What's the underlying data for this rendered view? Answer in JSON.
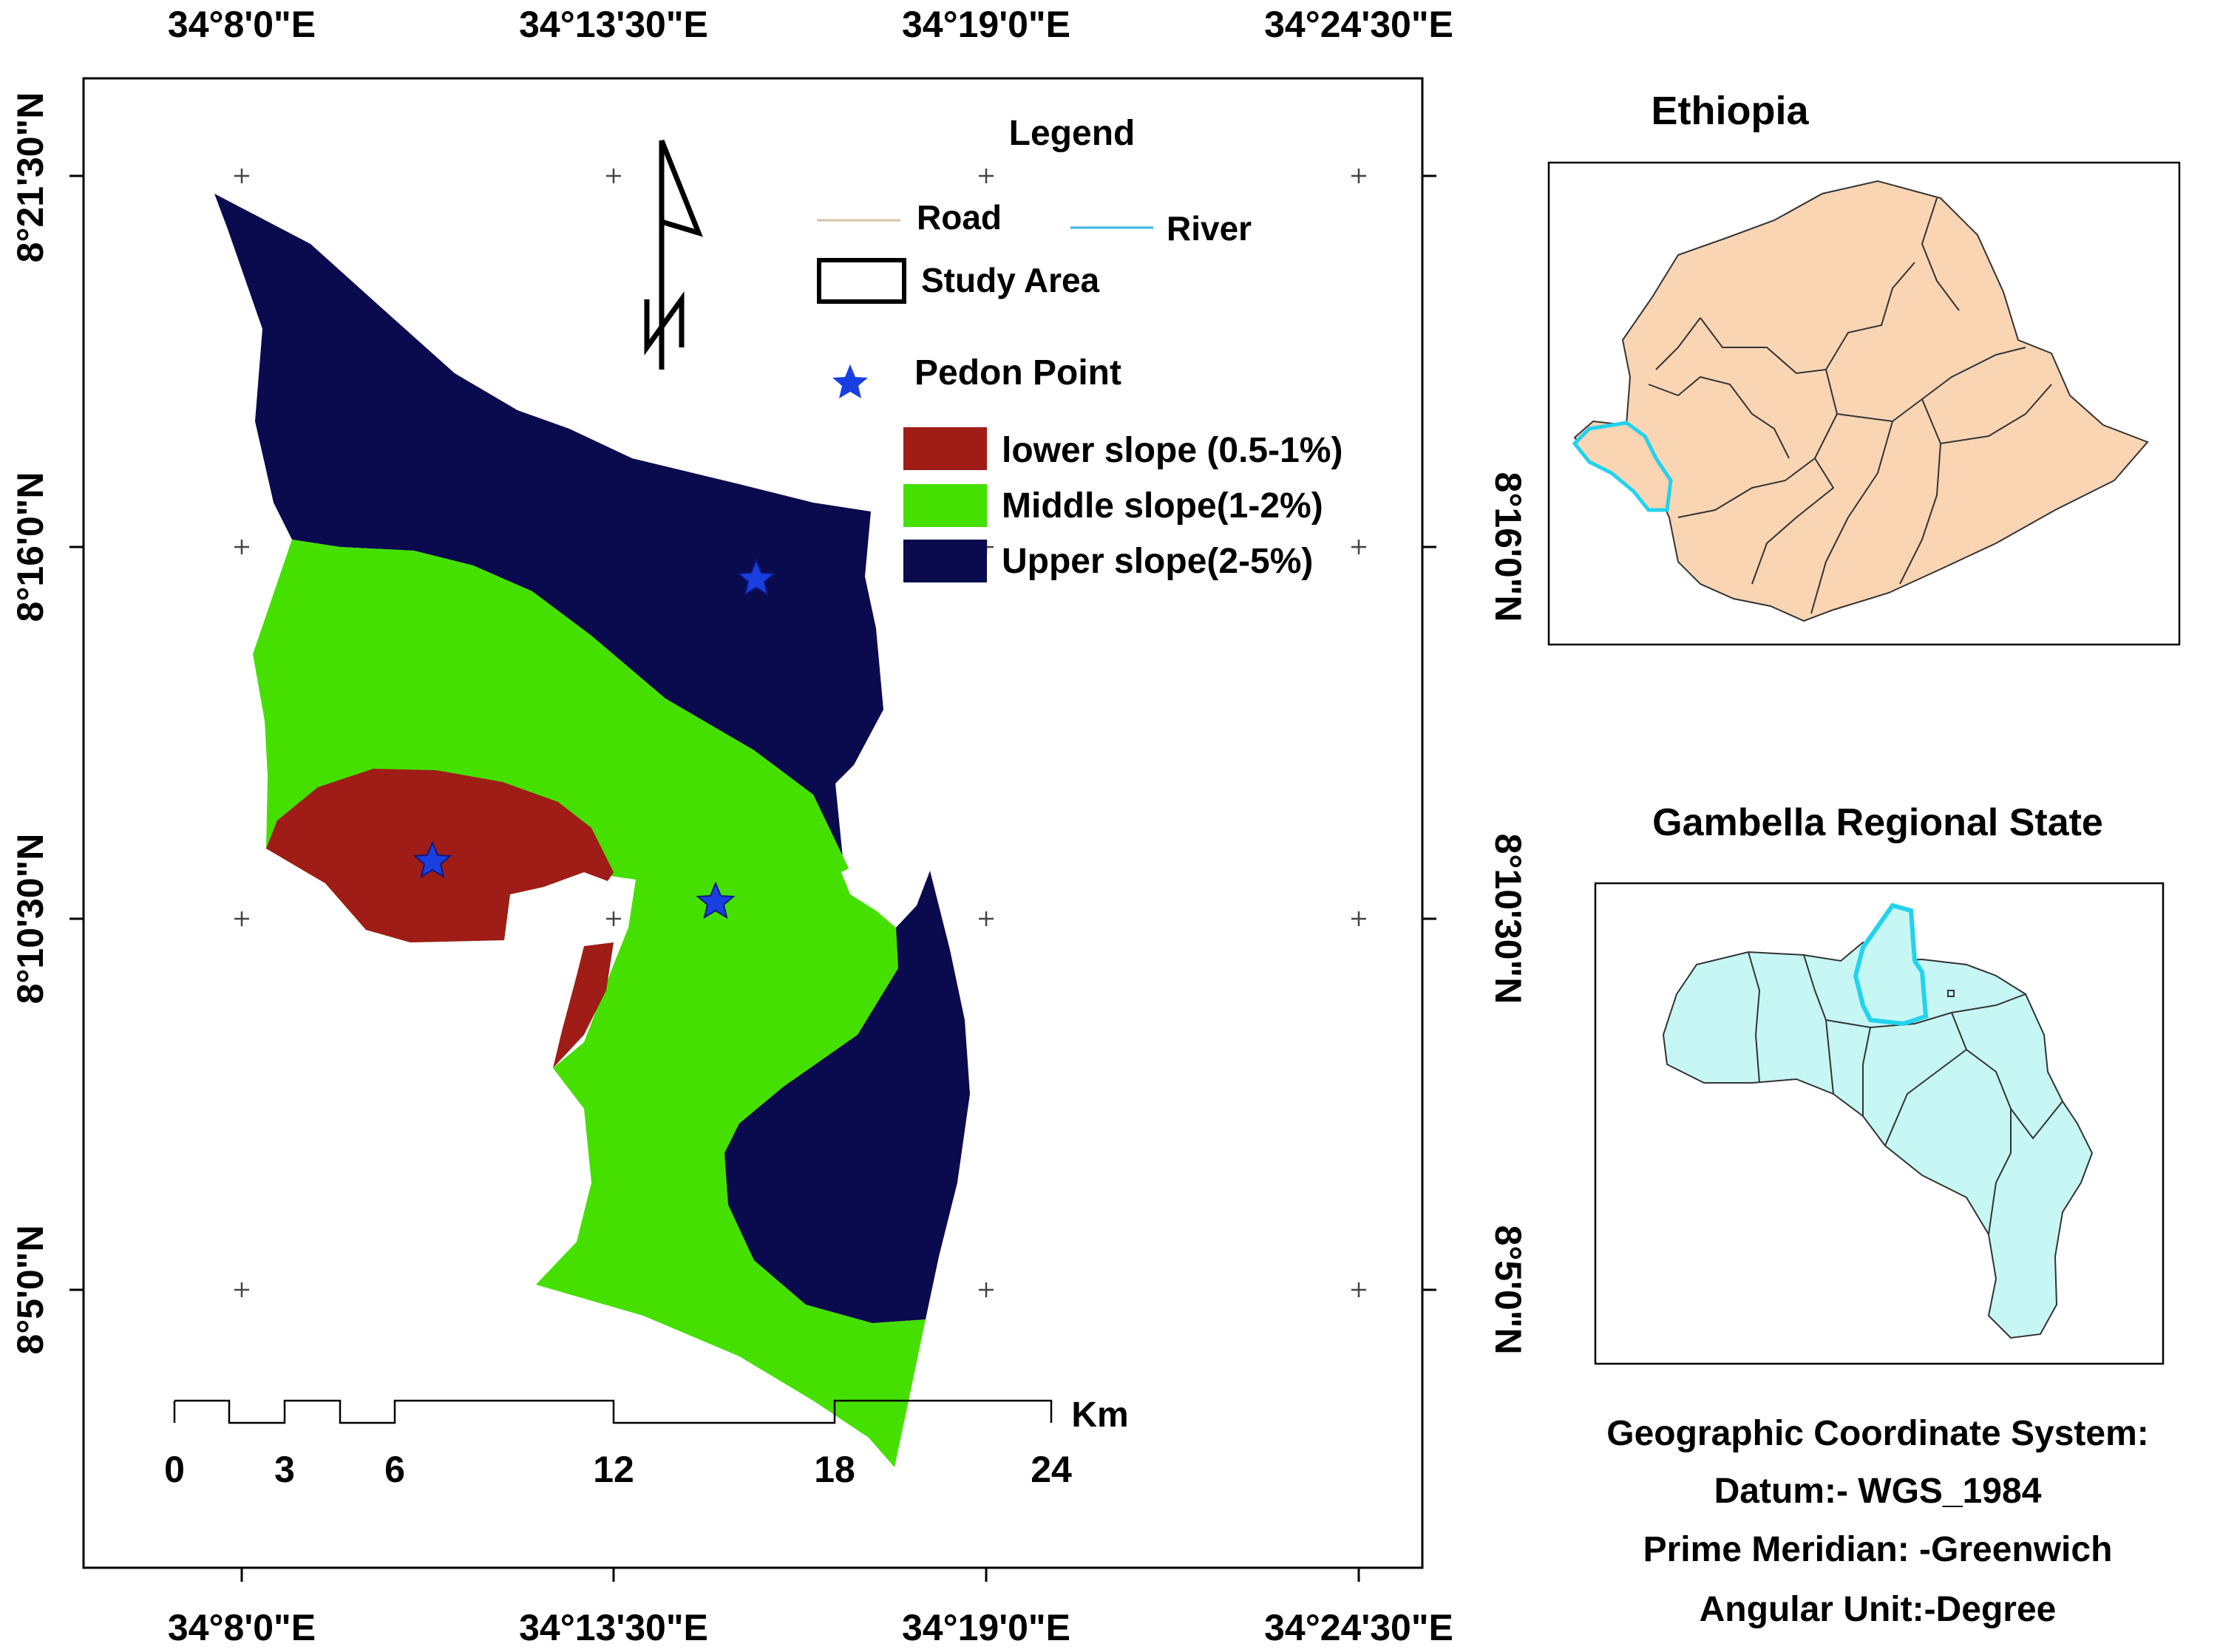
{
  "coordinate_labels": {
    "top": [
      "34°8'0\"E",
      "34°13'30\"E",
      "34°19'0\"E",
      "34°24'30\"E"
    ],
    "bottom": [
      "34°8'0\"E",
      "34°13'30\"E",
      "34°19'0\"E",
      "34°24'30\"E"
    ],
    "left": [
      "8°21'30\"N",
      "8°16'0\"N",
      "8°10'30\"N",
      "8°5'0\"N"
    ],
    "right": [
      "8°16'0\"N",
      "8°10'30\"N",
      "8°5'0\"N"
    ]
  },
  "legend": {
    "title": "Legend",
    "road": "Road",
    "river": "River",
    "study_area": "Study Area",
    "pedon_point": "Pedon Point",
    "classes": [
      {
        "label": "lower slope (0.5-1%)",
        "color": "#a01c17"
      },
      {
        "label": "Middle slope(1-2%)",
        "color": "#45e000"
      },
      {
        "label": "Upper slope(2-5%)",
        "color": "#0a0a4e"
      }
    ],
    "road_color": "#d9c3a6",
    "river_color": "#3ab6e6",
    "pedon_color": "#1a3fe0"
  },
  "scale_bar": {
    "unit": "Km",
    "ticks": [
      "0",
      "3",
      "6",
      "12",
      "18",
      "24"
    ]
  },
  "insets": {
    "ethiopia": {
      "title": "Ethiopia",
      "fill": "#f9d5b4",
      "highlight": "#22d3ee"
    },
    "gambella": {
      "title": "Gambella Regional State",
      "fill": "#c6f7f4",
      "highlight": "#22d3ee"
    }
  },
  "coordinate_system": {
    "line1": "Geographic Coordinate System:",
    "line2": "Datum:-  WGS_1984",
    "line3": "Prime Meridian: -Greenwich",
    "line4": "Angular Unit:-Degree"
  }
}
